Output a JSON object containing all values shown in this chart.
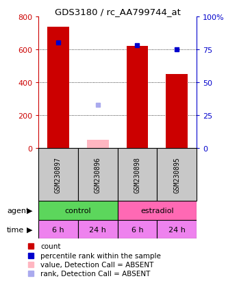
{
  "title": "GDS3180 / rc_AA799744_at",
  "samples": [
    "GSM230897",
    "GSM230896",
    "GSM230898",
    "GSM230895"
  ],
  "count_values": [
    735,
    50,
    620,
    450
  ],
  "count_absent": [
    false,
    true,
    false,
    false
  ],
  "rank_values": [
    80,
    33,
    78,
    75
  ],
  "rank_absent": [
    false,
    true,
    false,
    false
  ],
  "ylim_left": [
    0,
    800
  ],
  "ylim_right": [
    0,
    100
  ],
  "yticks_left": [
    0,
    200,
    400,
    600,
    800
  ],
  "yticks_right": [
    0,
    25,
    50,
    75,
    100
  ],
  "time_labels": [
    "6 h",
    "24 h",
    "6 h",
    "24 h"
  ],
  "agent_green": "#5CD65C",
  "agent_pink": "#FF69B4",
  "time_color": "#EE82EE",
  "sample_box_color": "#C8C8C8",
  "bar_color_present": "#CC0000",
  "bar_color_absent": "#FFB6C1",
  "rank_color_present": "#0000CC",
  "rank_color_absent": "#AAAAEE",
  "legend_items": [
    {
      "label": "count",
      "color": "#CC0000"
    },
    {
      "label": "percentile rank within the sample",
      "color": "#0000CC"
    },
    {
      "label": "value, Detection Call = ABSENT",
      "color": "#FFB6C1"
    },
    {
      "label": "rank, Detection Call = ABSENT",
      "color": "#AAAAEE"
    }
  ]
}
